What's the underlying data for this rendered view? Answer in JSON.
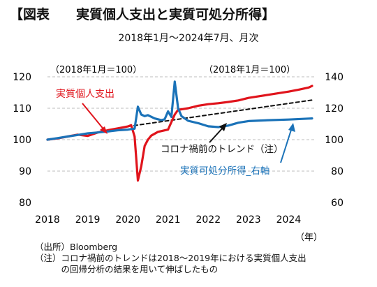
{
  "header": {
    "title": "【図表　　実質個人支出と実質可処分所得】",
    "subtitle": "2018年1月～2024年7月、月次"
  },
  "notes": {
    "source": "（出所）Bloomberg",
    "note_line1": "（注）コロナ禍前のトレンドは2018～2019年における実質個人支出",
    "note_line2": "　　　の回帰分析の結果を用いて伸ばしたもの"
  },
  "colors": {
    "spending": "#e0141c",
    "income": "#1a72b8",
    "trend": "#111111",
    "grid": "#bdbdbd"
  },
  "chart_data": {
    "type": "line",
    "left_axis": {
      "label": "（2018年1月＝100）",
      "range": [
        80,
        120
      ],
      "ticks": [
        "80",
        "90",
        "100",
        "110",
        "120"
      ]
    },
    "right_axis": {
      "label": "（2018年1月＝100）",
      "range": [
        60,
        140
      ],
      "ticks": [
        "60",
        "80",
        "100",
        "120",
        "140"
      ]
    },
    "x_axis": {
      "unit": "（年）",
      "range": [
        2018,
        2024.583
      ],
      "ticks": [
        "2018",
        "2019",
        "2020",
        "2021",
        "2022",
        "2023",
        "2024"
      ]
    },
    "grid": "horizontal dashed",
    "series": [
      {
        "name": "実質個人支出",
        "axis": "left",
        "color": "#e0141c",
        "x": [
          2018.0,
          2018.25,
          2018.5,
          2018.75,
          2019.0,
          2019.25,
          2019.5,
          2019.75,
          2020.0,
          2020.083,
          2020.167,
          2020.25,
          2020.333,
          2020.417,
          2020.5,
          2020.583,
          2020.75,
          2021.0,
          2021.167,
          2021.25,
          2021.5,
          2021.75,
          2022.0,
          2022.25,
          2022.5,
          2022.75,
          2023.0,
          2023.25,
          2023.5,
          2023.75,
          2024.0,
          2024.25,
          2024.5,
          2024.583
        ],
        "y": [
          100.0,
          100.4,
          101.0,
          101.6,
          101.2,
          102.3,
          103.0,
          103.6,
          104.2,
          104.6,
          101.0,
          87.0,
          91.5,
          98.0,
          100.0,
          101.3,
          102.5,
          103.2,
          108.0,
          109.5,
          110.0,
          110.8,
          111.3,
          111.6,
          112.0,
          112.5,
          113.3,
          113.8,
          114.3,
          114.8,
          115.3,
          115.9,
          116.6,
          117.1
        ]
      },
      {
        "name": "実質可処分所得_右軸",
        "axis": "right",
        "color": "#1a72b8",
        "x": [
          2018.0,
          2018.25,
          2018.5,
          2018.75,
          2019.0,
          2019.25,
          2019.5,
          2019.75,
          2020.0,
          2020.167,
          2020.25,
          2020.333,
          2020.417,
          2020.5,
          2020.667,
          2020.833,
          2020.917,
          2021.0,
          2021.083,
          2021.167,
          2021.25,
          2021.333,
          2021.5,
          2021.75,
          2022.0,
          2022.25,
          2022.5,
          2022.75,
          2023.0,
          2023.5,
          2024.0,
          2024.5,
          2024.583
        ],
        "y": [
          100.0,
          101.0,
          102.0,
          103.0,
          104.0,
          104.6,
          105.2,
          106.0,
          106.4,
          107.0,
          121.0,
          116.0,
          115.0,
          115.6,
          113.5,
          112.4,
          113.0,
          118.0,
          114.5,
          137.0,
          120.0,
          115.0,
          112.0,
          110.5,
          108.5,
          108.0,
          109.0,
          110.8,
          111.8,
          112.4,
          112.8,
          113.4,
          113.5
        ]
      },
      {
        "name": "コロナ禍前のトレンド（注）",
        "axis": "left",
        "color": "#111111",
        "style": "dashed",
        "x": [
          2020.0,
          2024.583
        ],
        "y": [
          104.2,
          112.6
        ]
      }
    ],
    "annotations": [
      "実質個人支出",
      "コロナ禍前のトレンド（注）",
      "実質可処分所得_右軸"
    ]
  }
}
